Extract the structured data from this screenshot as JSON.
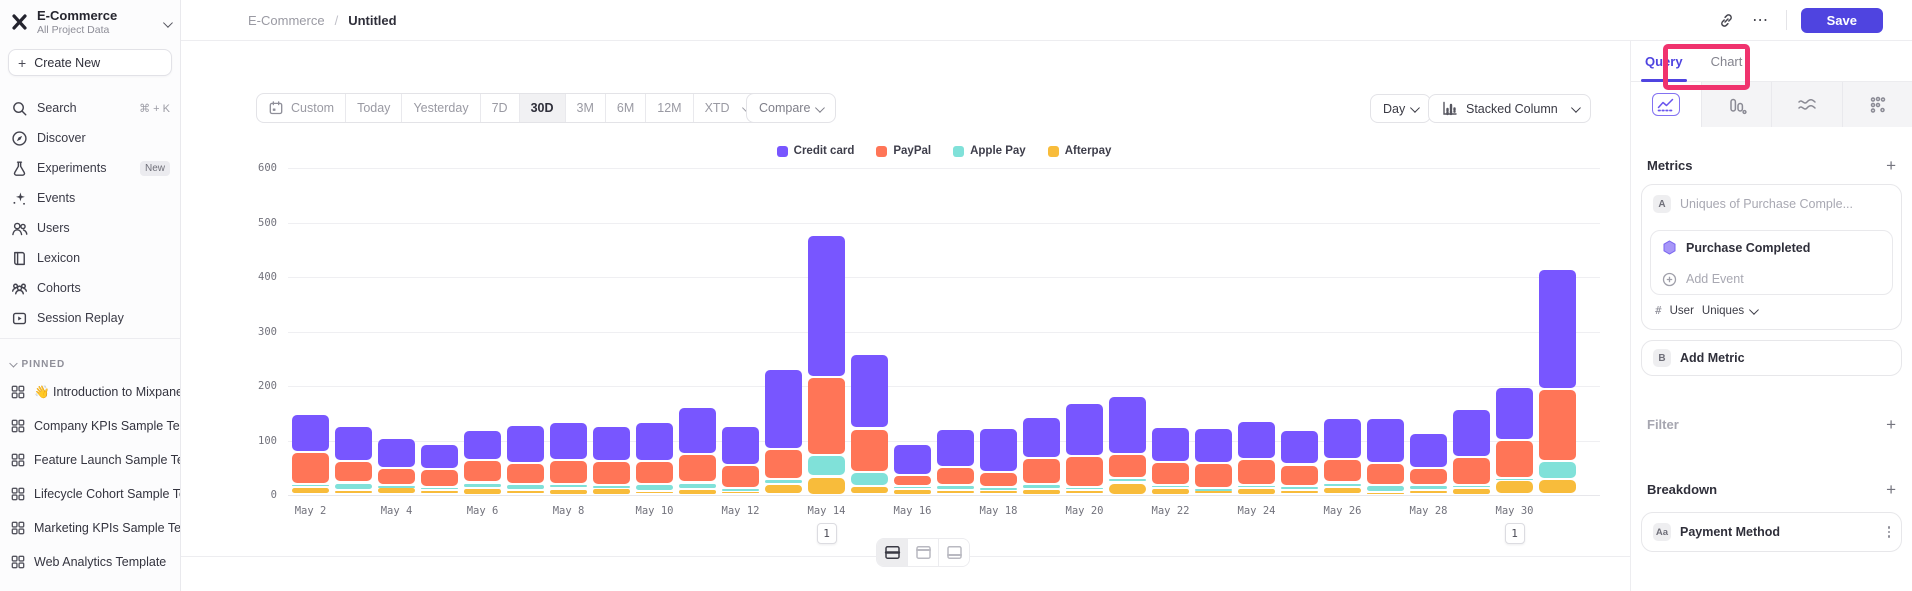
{
  "colors": {
    "accent": "#4F44E0",
    "annotation": "#F0336E",
    "sidebar_bg": "#fcfcfd"
  },
  "sidebar": {
    "project": "E-Commerce",
    "scope": "All Project Data",
    "create_new": "Create New",
    "nav": [
      {
        "icon": "search-icon",
        "label": "Search",
        "shortcut": "⌘ + K"
      },
      {
        "icon": "compass-icon",
        "label": "Discover"
      },
      {
        "icon": "flask-icon",
        "label": "Experiments",
        "badge": "New"
      },
      {
        "icon": "spark-icon",
        "label": "Events"
      },
      {
        "icon": "users-icon",
        "label": "Users"
      },
      {
        "icon": "book-icon",
        "label": "Lexicon"
      },
      {
        "icon": "cohorts-icon",
        "label": "Cohorts"
      },
      {
        "icon": "replay-icon",
        "label": "Session Replay"
      }
    ],
    "pinned_header": "PINNED",
    "pinned": [
      "👋 Introduction to Mixpanel Bo",
      "Company KPIs Sample Templat",
      "Feature Launch Sample Templa",
      "Lifecycle Cohort Sample Temp",
      "Marketing KPIs Sample Templat",
      "Web Analytics Template"
    ]
  },
  "topbar": {
    "breadcrumb_project": "E-Commerce",
    "breadcrumb_sep": "/",
    "breadcrumb_page": "Untitled",
    "save": "Save"
  },
  "toolbar": {
    "ranges": [
      "Custom",
      "Today",
      "Yesterday",
      "7D",
      "30D",
      "3M",
      "6M",
      "12M",
      "XTD"
    ],
    "active_range": "30D",
    "compare": "Compare",
    "granularity": "Day",
    "chart_type": "Stacked Column"
  },
  "chart_data": {
    "type": "bar",
    "subtype": "stacked-column",
    "x": [
      "May 2",
      "May 3",
      "May 4",
      "May 5",
      "May 6",
      "May 7",
      "May 8",
      "May 9",
      "May 10",
      "May 11",
      "May 12",
      "May 13",
      "May 14",
      "May 15",
      "May 16",
      "May 17",
      "May 18",
      "May 19",
      "May 20",
      "May 21",
      "May 22",
      "May 23",
      "May 24",
      "May 25",
      "May 26",
      "May 27",
      "May 28",
      "May 29",
      "May 30",
      "May 31"
    ],
    "x_label_every": 2,
    "series": [
      {
        "name": "Credit card",
        "color": "#7856FF",
        "values": [
          70,
          63,
          55,
          46,
          55,
          70,
          70,
          63,
          71,
          85,
          70,
          147,
          262,
          136,
          58,
          70,
          80,
          76,
          98,
          105,
          64,
          65,
          70,
          63,
          75,
          82,
          65,
          89,
          98,
          220
        ]
      },
      {
        "name": "PayPal",
        "color": "#FF7557",
        "values": [
          58,
          40,
          31,
          32,
          41,
          38,
          43,
          45,
          42,
          53,
          43,
          55,
          142,
          79,
          19,
          32,
          29,
          47,
          56,
          45,
          42,
          46,
          47,
          39,
          43,
          40,
          30,
          50,
          69,
          132
        ]
      },
      {
        "name": "Apple Pay",
        "color": "#80E1D9",
        "values": [
          7,
          14,
          4,
          5,
          10,
          11,
          9,
          5,
          13,
          12,
          5,
          8,
          40,
          27,
          6,
          10,
          5,
          10,
          6,
          8,
          6,
          4,
          6,
          8,
          8,
          13,
          10,
          6,
          5,
          33
        ]
      },
      {
        "name": "Afterpay",
        "color": "#F8BC3B",
        "values": [
          13,
          8,
          13,
          9,
          12,
          9,
          11,
          12,
          7,
          10,
          7,
          20,
          33,
          15,
          10,
          8,
          8,
          10,
          8,
          22,
          12,
          8,
          12,
          8,
          14,
          5,
          8,
          12,
          26,
          28
        ]
      }
    ],
    "ylim": [
      0,
      600
    ],
    "yticks": [
      0,
      100,
      200,
      300,
      400,
      500,
      600
    ],
    "grid": true,
    "legend_position": "top-center",
    "annotations": [
      {
        "x": "May 14",
        "label": "1"
      },
      {
        "x": "May 30",
        "label": "1"
      }
    ]
  },
  "layout_toggle": {
    "options": [
      "chart-table-split-icon",
      "table-top-icon",
      "table-bottom-icon"
    ],
    "active_index": 0
  },
  "right_panel": {
    "tabs": [
      "Query",
      "Chart"
    ],
    "active_tab": "Query",
    "chart_type_tabs": [
      {
        "icon": "line-chart-icon",
        "active": true
      },
      {
        "icon": "column-chart-icon",
        "active": false
      },
      {
        "icon": "flow-icon",
        "active": false
      },
      {
        "icon": "scatter-icon",
        "active": false
      }
    ],
    "metrics_label": "Metrics",
    "metric_a": {
      "badge": "A",
      "name_placeholder": "Uniques of Purchase Comple...",
      "event": "Purchase Completed",
      "add_event": "Add Event",
      "measure_prefix": "#",
      "measure_entity": "User",
      "measure_type": "Uniques"
    },
    "metric_b": {
      "badge": "B",
      "label": "Add Metric"
    },
    "filter_label": "Filter",
    "breakdown_label": "Breakdown",
    "breakdown_item": {
      "badge": "Aa",
      "label": "Payment Method"
    }
  }
}
